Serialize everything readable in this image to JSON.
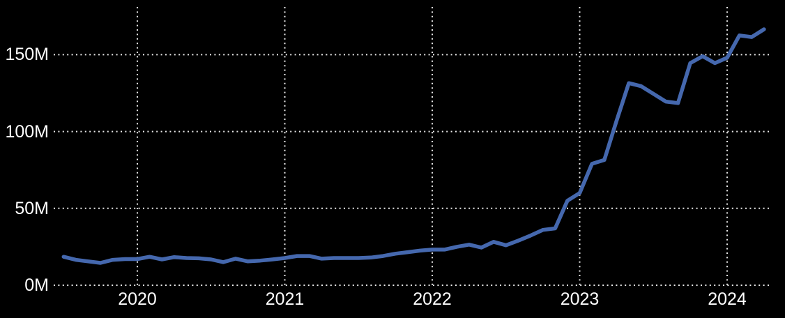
{
  "chart_data": {
    "type": "line",
    "x_unit": "month",
    "x": [
      "2019-07",
      "2019-08",
      "2019-09",
      "2019-10",
      "2019-11",
      "2019-12",
      "2020-01",
      "2020-02",
      "2020-03",
      "2020-04",
      "2020-05",
      "2020-06",
      "2020-07",
      "2020-08",
      "2020-09",
      "2020-10",
      "2020-11",
      "2020-12",
      "2021-01",
      "2021-02",
      "2021-03",
      "2021-04",
      "2021-05",
      "2021-06",
      "2021-07",
      "2021-08",
      "2021-09",
      "2021-10",
      "2021-11",
      "2021-12",
      "2022-01",
      "2022-02",
      "2022-03",
      "2022-04",
      "2022-05",
      "2022-06",
      "2022-07",
      "2022-08",
      "2022-09",
      "2022-10",
      "2022-11",
      "2022-12",
      "2023-01",
      "2023-02",
      "2023-03",
      "2023-04",
      "2023-05",
      "2023-06",
      "2023-07",
      "2023-08",
      "2023-09",
      "2023-10",
      "2023-11",
      "2023-12",
      "2024-01",
      "2024-02",
      "2024-03",
      "2024-04"
    ],
    "series": [
      {
        "name": "monthly-value-millions",
        "color": "#4568ae",
        "values": [
          18.5,
          16.5,
          15.5,
          14.5,
          16.5,
          17,
          17,
          18.5,
          16.8,
          18.3,
          17.7,
          17.5,
          16.8,
          15,
          17.3,
          15.5,
          16,
          16.8,
          17.7,
          19,
          19,
          17.3,
          17.7,
          17.7,
          17.7,
          18,
          19,
          20.5,
          21.5,
          22.5,
          23.2,
          23.2,
          25,
          26.4,
          24.5,
          28.2,
          26,
          29,
          32.3,
          36,
          37,
          55,
          60,
          79,
          81.5,
          107,
          131.5,
          129.5,
          124.5,
          119.5,
          118.5,
          144.5,
          149,
          144.5,
          148,
          162.5,
          161.5,
          166.5
        ]
      }
    ],
    "x_tick_labels": [
      "2020",
      "2021",
      "2022",
      "2023",
      "2024"
    ],
    "y_ticks": [
      {
        "label": "0M",
        "value": 0
      },
      {
        "label": "50M",
        "value": 50
      },
      {
        "label": "100M",
        "value": 100
      },
      {
        "label": "150M",
        "value": 150
      }
    ],
    "ylim": [
      0,
      181
    ],
    "grid": "dotted",
    "legend": "none",
    "colors": {
      "background": "#000000",
      "text": "#ffffff",
      "gridline": "#e8e8e8",
      "line": "#4568ae"
    }
  }
}
